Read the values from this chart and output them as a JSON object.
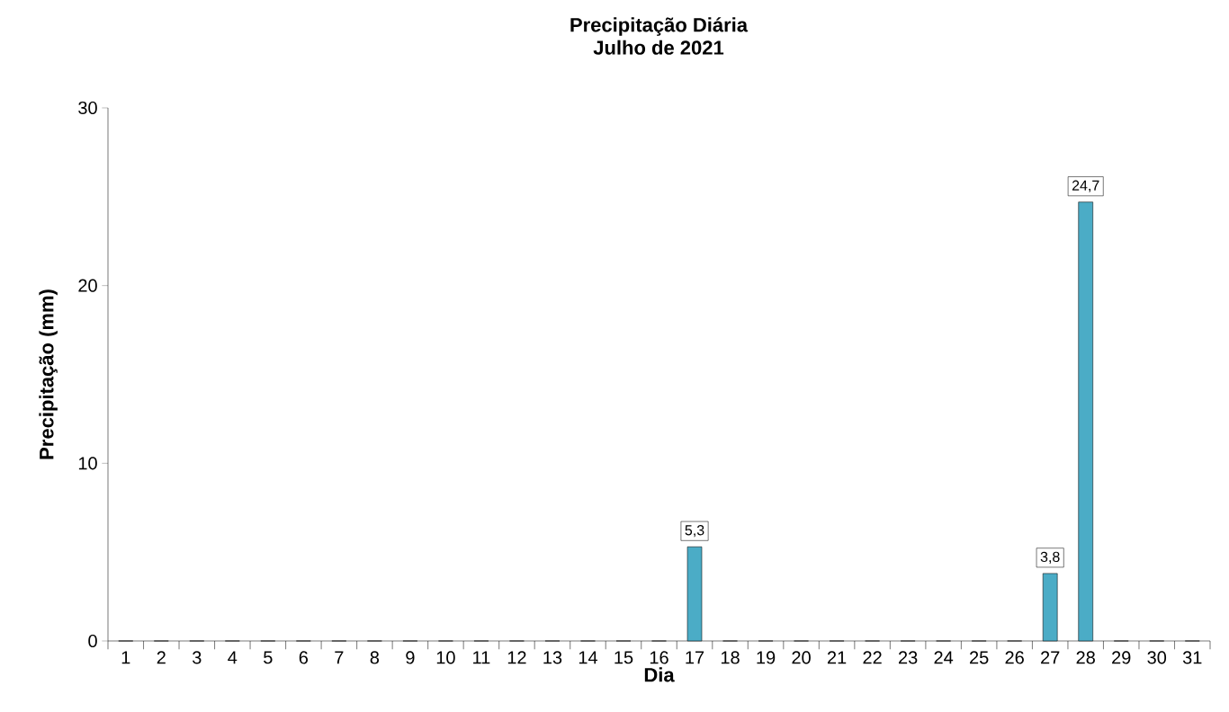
{
  "chart_data": {
    "type": "bar",
    "title": "Precipitação Diária",
    "subtitle": "Julho de 2021",
    "xlabel": "Dia",
    "ylabel": "Precipitação (mm)",
    "categories": [
      "1",
      "2",
      "3",
      "4",
      "5",
      "6",
      "7",
      "8",
      "9",
      "10",
      "11",
      "12",
      "13",
      "14",
      "15",
      "16",
      "17",
      "18",
      "19",
      "20",
      "21",
      "22",
      "23",
      "24",
      "25",
      "26",
      "27",
      "28",
      "29",
      "30",
      "31"
    ],
    "values": [
      0,
      0,
      0,
      0,
      0,
      0,
      0,
      0,
      0,
      0,
      0,
      0,
      0,
      0,
      0,
      0,
      5.3,
      0,
      0,
      0,
      0,
      0,
      0,
      0,
      0,
      0,
      3.8,
      24.7,
      0,
      0,
      0
    ],
    "value_labels": [
      null,
      null,
      null,
      null,
      null,
      null,
      null,
      null,
      null,
      null,
      null,
      null,
      null,
      null,
      null,
      null,
      "5,3",
      null,
      null,
      null,
      null,
      null,
      null,
      null,
      null,
      null,
      "3,8",
      "24,7",
      null,
      null,
      null
    ],
    "color": "#4bacc6",
    "ylim": [
      0,
      30
    ],
    "yticks": [
      0,
      10,
      20,
      30
    ],
    "grid": false
  }
}
